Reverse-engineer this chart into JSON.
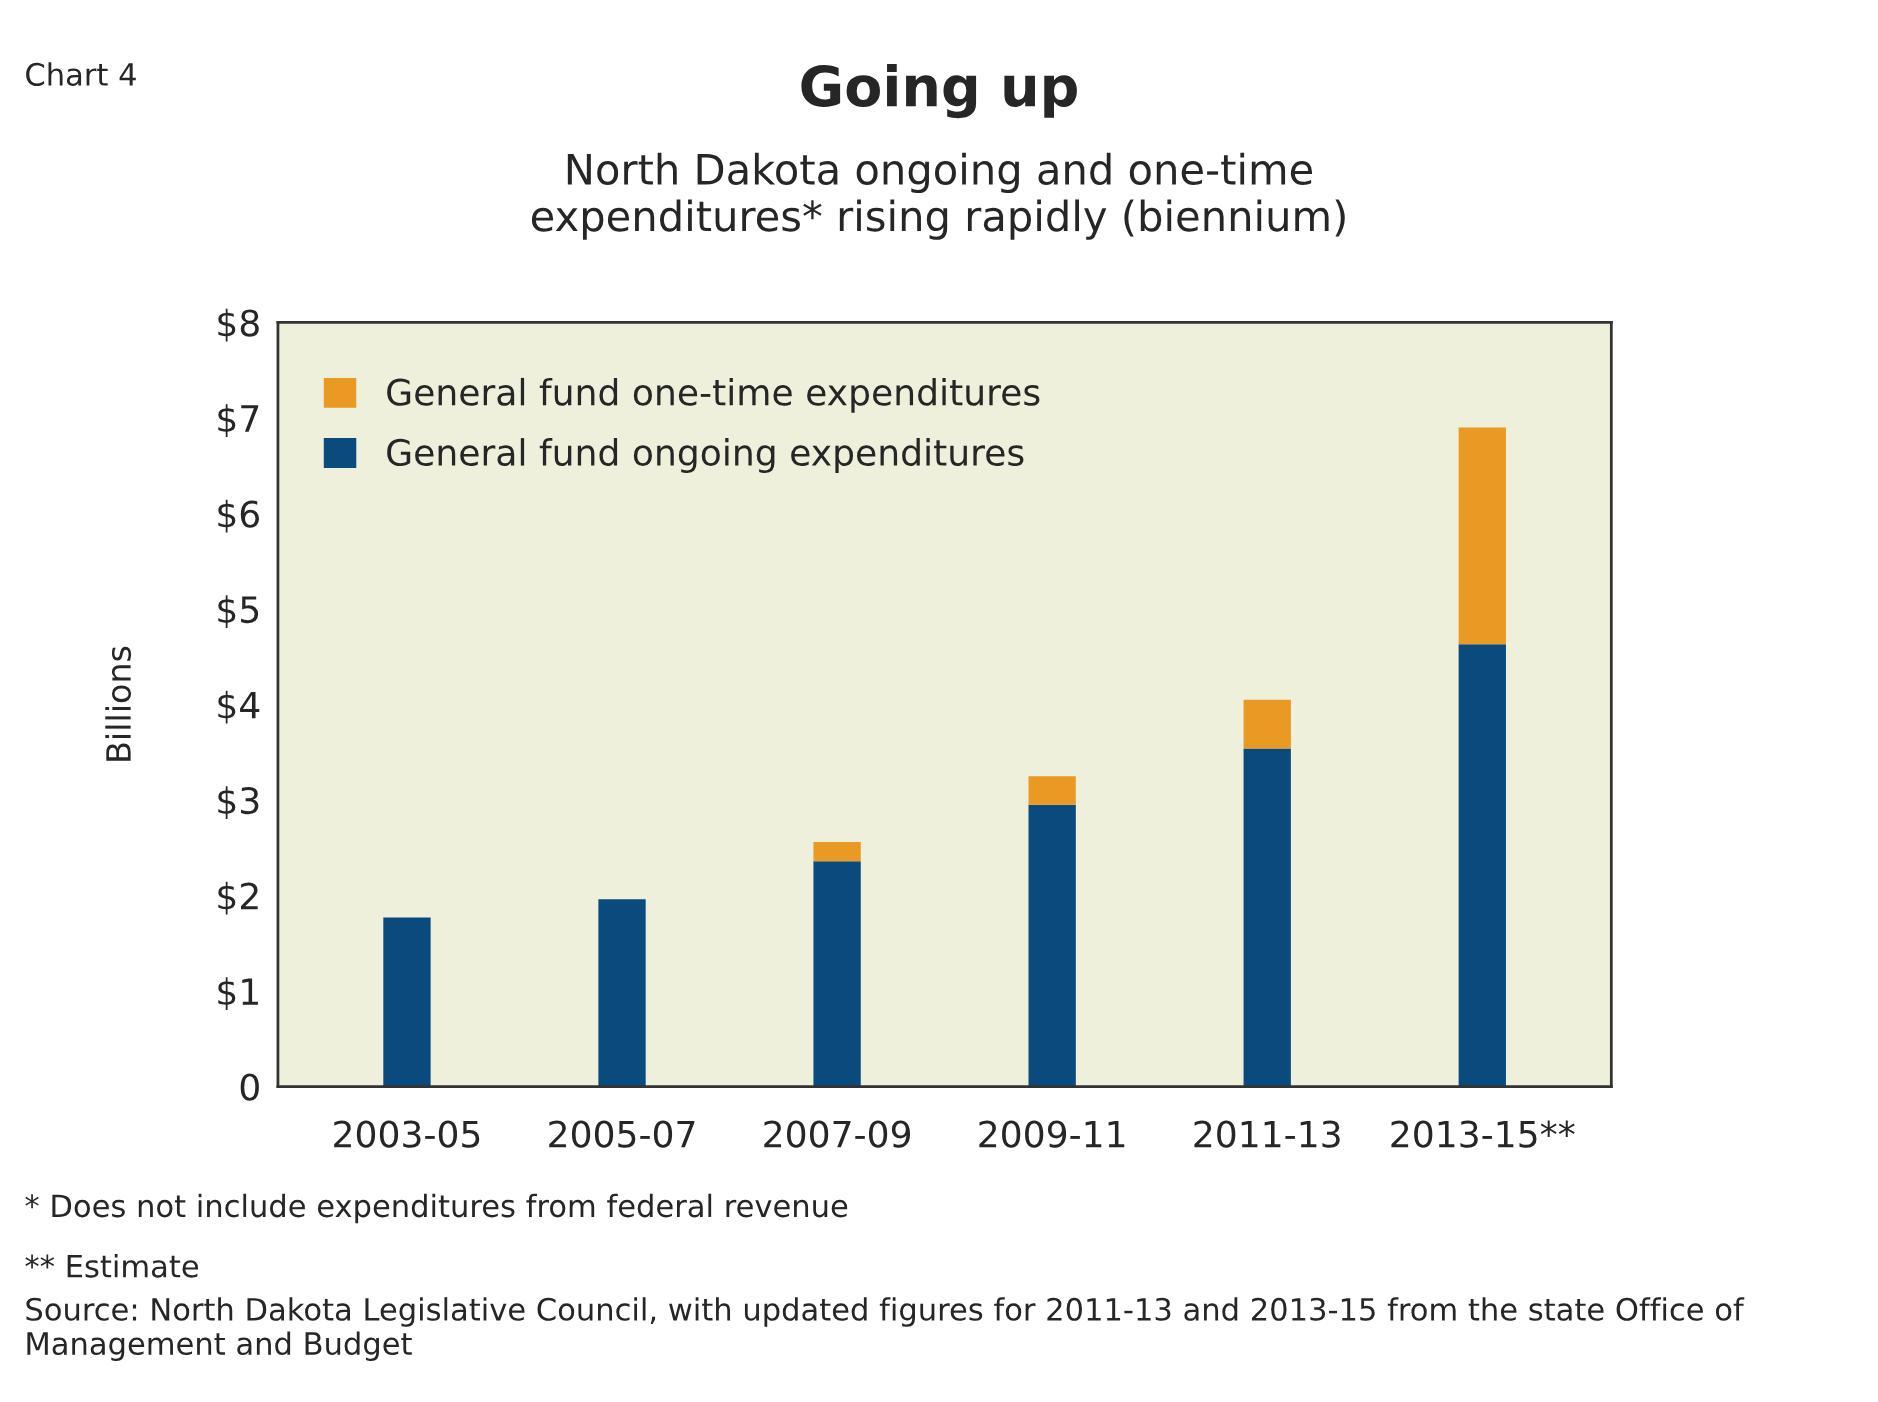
{
  "chart_data": {
    "type": "bar",
    "stacked": true,
    "title": "Going up",
    "subtitle": "North Dakota ongoing and one-time\nexpenditures* rising rapidly (biennium)",
    "ylabel": "Billions",
    "categories": [
      "2003-05",
      "2005-07",
      "2007-09",
      "2009-11",
      "2011-13",
      "2013-15**"
    ],
    "series": [
      {
        "name": "General fund ongoing expenditures",
        "color": "#0b4a7d",
        "values": [
          1.77,
          1.96,
          2.36,
          2.95,
          3.54,
          4.63
        ]
      },
      {
        "name": "General fund one-time expenditures",
        "color": "#e99a24",
        "values": [
          null,
          null,
          0.2,
          0.3,
          0.51,
          2.27
        ]
      }
    ],
    "ylim": [
      0,
      8
    ],
    "yticks": [
      {
        "value": 0,
        "label": "0"
      },
      {
        "value": 1,
        "label": "$1"
      },
      {
        "value": 2,
        "label": "$2"
      },
      {
        "value": 3,
        "label": "$3"
      },
      {
        "value": 4,
        "label": "$4"
      },
      {
        "value": 5,
        "label": "$5"
      },
      {
        "value": 6,
        "label": "$6"
      },
      {
        "value": 7,
        "label": "$7"
      },
      {
        "value": 8,
        "label": "$8"
      }
    ],
    "grid": false,
    "legend": "top left",
    "annotations": [
      "Chart 4",
      "* Does not include expenditures from federal revenue",
      "** Estimate",
      "Source: North Dakota Legislative Council, with updated figures for 2011-13 and 2013-15 from the state Office of Management and Budget"
    ]
  }
}
